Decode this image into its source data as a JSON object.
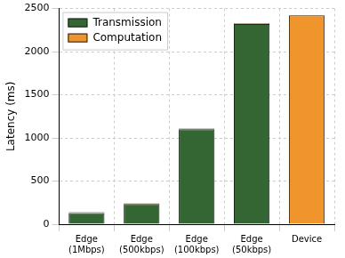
{
  "chart_data": {
    "type": "bar",
    "categories": [
      "Edge\n(1Mbps)",
      "Edge\n(500kbps)",
      "Edge\n(100kbps)",
      "Edge\n(50kbps)",
      "Device"
    ],
    "series": [
      {
        "name": "Transmission",
        "color": "#346633",
        "values": [
          130,
          235,
          1100,
          2320,
          0
        ]
      },
      {
        "name": "Computation",
        "color": "#ef952b",
        "values": [
          8,
          8,
          8,
          8,
          2420
        ]
      }
    ],
    "stacked": true,
    "y_label": "Latency (ms)",
    "ylim": [
      0,
      2500
    ],
    "yticks": [
      0,
      500,
      1000,
      1500,
      2000,
      2500
    ],
    "grid": true,
    "legend": "upper left"
  }
}
